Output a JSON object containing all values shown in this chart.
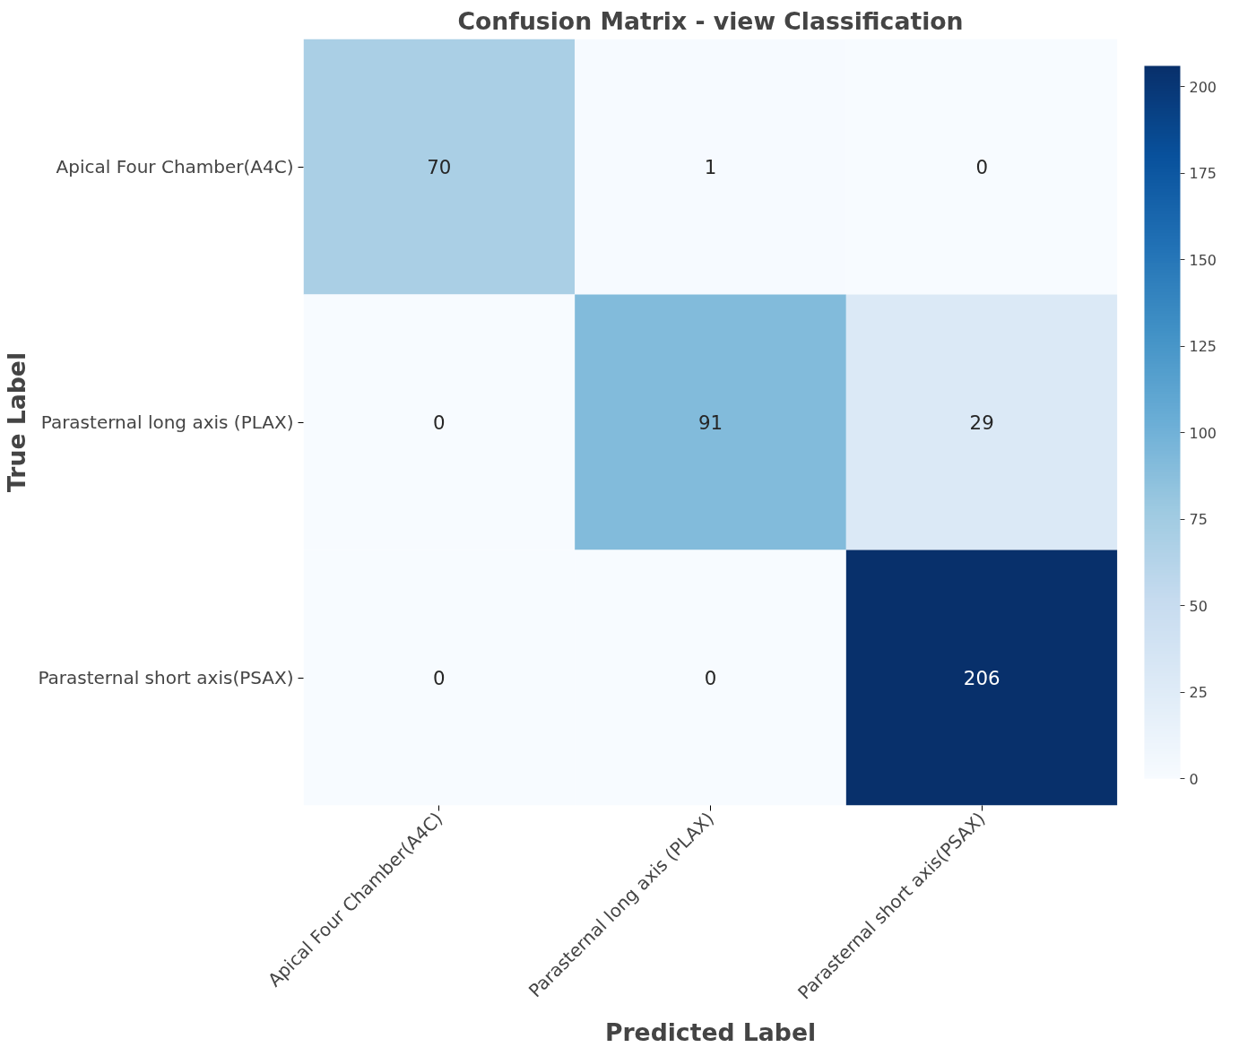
{
  "chart_data": {
    "type": "heatmap",
    "title": "Confusion Matrix - view Classification",
    "xlabel": "Predicted Label",
    "ylabel": "True Label",
    "categories": [
      "Apical Four Chamber(A4C)",
      "Parasternal long axis (PLAX)",
      "Parasternal short axis(PSAX)"
    ],
    "y_categories": [
      "Apical Four Chamber(A4C)",
      "Parasternal long axis (PLAX)",
      "Parasternal short axis(PSAX)"
    ],
    "cells": [
      [
        70,
        1,
        0
      ],
      [
        0,
        91,
        29
      ],
      [
        0,
        0,
        206
      ]
    ],
    "clim": [
      0,
      206
    ],
    "cticks": [
      0,
      25,
      50,
      75,
      100,
      125,
      150,
      175,
      200
    ],
    "data_labels": true
  }
}
